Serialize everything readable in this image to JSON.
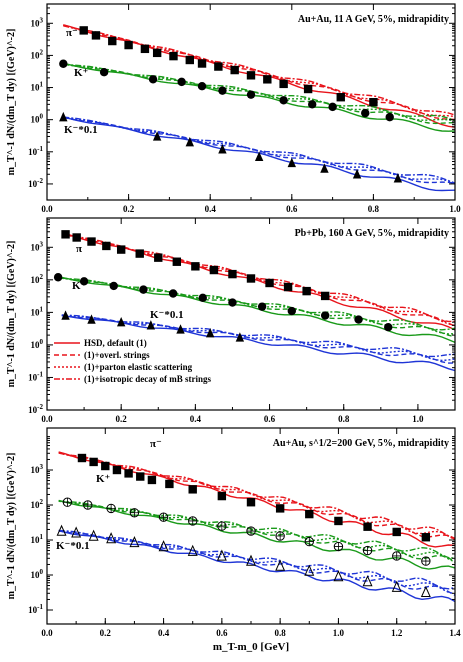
{
  "figure": {
    "xlabel": "m_T-m_0 [GeV]",
    "legend": [
      {
        "label": "HSD, default (1)",
        "style": "solid",
        "color": "#e8141b"
      },
      {
        "label": "(1)+overl. strings",
        "style": "dash",
        "color": "#e8141b"
      },
      {
        "label": "(1)+parton elastic scattering",
        "style": "dot",
        "color": "#e8141b"
      },
      {
        "label": "(1)+isotropic decay of mB strings",
        "style": "dashdot",
        "color": "#e8141b"
      }
    ],
    "colors": {
      "pion": "#e8141b",
      "kaon": "#1a9a1a",
      "kminus": "#1f35d6"
    }
  },
  "chart_data": [
    {
      "type": "line",
      "title": "Au+Au, 11 A GeV, 5%, midrapidity",
      "ylabel": "m_T^-1 dN/(dm_T dy) [(GeV)^-2]",
      "xlim": [
        0,
        1.0
      ],
      "ylim_log10": [
        -2.5,
        3.6
      ],
      "x_ticks": [
        "0.0",
        "0.2",
        "0.4",
        "0.6",
        "0.8",
        "1.0"
      ],
      "y_ticks": [
        "10^-2",
        "10^-1",
        "10^0",
        "10^1",
        "10^2",
        "10^3"
      ],
      "series": [
        {
          "name": "π⁻",
          "marker": "square-filled",
          "color": "#000",
          "points": [
            [
              0.09,
              600
            ],
            [
              0.12,
              420
            ],
            [
              0.16,
              280
            ],
            [
              0.2,
              210
            ],
            [
              0.24,
              160
            ],
            [
              0.27,
              120
            ],
            [
              0.31,
              95
            ],
            [
              0.35,
              72
            ],
            [
              0.38,
              56
            ],
            [
              0.42,
              45
            ],
            [
              0.46,
              35
            ],
            [
              0.5,
              24
            ],
            [
              0.54,
              18
            ],
            [
              0.58,
              13
            ],
            [
              0.64,
              9
            ],
            [
              0.72,
              5
            ],
            [
              0.8,
              3.5
            ]
          ]
        },
        {
          "name": "K⁺",
          "marker": "circle-filled",
          "color": "#000",
          "points": [
            [
              0.04,
              55
            ],
            [
              0.14,
              30
            ],
            [
              0.26,
              18
            ],
            [
              0.33,
              15
            ],
            [
              0.38,
              11
            ],
            [
              0.43,
              8
            ],
            [
              0.5,
              6
            ],
            [
              0.58,
              4
            ],
            [
              0.65,
              3
            ],
            [
              0.7,
              2.5
            ],
            [
              0.78,
              1.6
            ],
            [
              0.84,
              1.2
            ]
          ]
        },
        {
          "name": "K⁻*0.1",
          "marker": "triangle-filled",
          "color": "#000",
          "points": [
            [
              0.04,
              1.2
            ],
            [
              0.27,
              0.3
            ],
            [
              0.35,
              0.2
            ],
            [
              0.43,
              0.12
            ],
            [
              0.52,
              0.07
            ],
            [
              0.6,
              0.045
            ],
            [
              0.68,
              0.03
            ],
            [
              0.76,
              0.02
            ],
            [
              0.86,
              0.015
            ]
          ]
        }
      ]
    },
    {
      "type": "line",
      "title": "Pb+Pb, 160 A GeV, 5%, midrapidity",
      "ylabel": "m_T^-1 dN/(dm_T dy) [(GeV)^-2]",
      "xlim": [
        0,
        1.1
      ],
      "ylim_log10": [
        -2,
        3.9
      ],
      "x_ticks": [
        "0.0",
        "0.2",
        "0.4",
        "0.6",
        "0.8",
        "1.0"
      ],
      "y_ticks": [
        "10^-2",
        "10^-1",
        "10^0",
        "10^1",
        "10^2",
        "10^3"
      ],
      "series": [
        {
          "name": "π",
          "marker": "square-filled",
          "color": "#000",
          "points": [
            [
              0.05,
              2500
            ],
            [
              0.08,
              2000
            ],
            [
              0.12,
              1500
            ],
            [
              0.16,
              1100
            ],
            [
              0.2,
              850
            ],
            [
              0.25,
              640
            ],
            [
              0.3,
              480
            ],
            [
              0.35,
              360
            ],
            [
              0.4,
              260
            ],
            [
              0.45,
              200
            ],
            [
              0.5,
              150
            ],
            [
              0.55,
              110
            ],
            [
              0.6,
              80
            ],
            [
              0.65,
              60
            ],
            [
              0.7,
              45
            ],
            [
              0.75,
              32
            ]
          ]
        },
        {
          "name": "K⁺",
          "marker": "circle-filled",
          "color": "#000",
          "points": [
            [
              0.03,
              120
            ],
            [
              0.1,
              90
            ],
            [
              0.18,
              65
            ],
            [
              0.26,
              50
            ],
            [
              0.34,
              38
            ],
            [
              0.42,
              28
            ],
            [
              0.5,
              20
            ],
            [
              0.58,
              15
            ],
            [
              0.66,
              11
            ],
            [
              0.75,
              8
            ],
            [
              0.84,
              6
            ],
            [
              0.92,
              3.5
            ]
          ]
        },
        {
          "name": "K⁻*0.1",
          "marker": "triangle-filled",
          "color": "#000",
          "points": [
            [
              0.05,
              8
            ],
            [
              0.12,
              6
            ],
            [
              0.2,
              5
            ],
            [
              0.28,
              4
            ],
            [
              0.36,
              3
            ],
            [
              0.44,
              2.3
            ],
            [
              0.52,
              1.7
            ]
          ]
        }
      ]
    },
    {
      "type": "line",
      "title": "Au+Au, s^1/2=200 GeV, 5%, midrapidity",
      "ylabel": "m_T^-1 dN/(dm_T dy) [(GeV)^-2]",
      "xlim": [
        0,
        1.4
      ],
      "ylim_log10": [
        -1.4,
        4.2
      ],
      "x_ticks": [
        "0.0",
        "0.2",
        "0.4",
        "0.6",
        "0.8",
        "1.0",
        "1.2",
        "1.4"
      ],
      "y_ticks": [
        "10^-1",
        "10^0",
        "10^1",
        "10^2",
        "10^3"
      ],
      "series": [
        {
          "name": "π⁻",
          "marker": "square-filled",
          "color": "#000",
          "points": [
            [
              0.12,
              2200
            ],
            [
              0.16,
              1700
            ],
            [
              0.2,
              1300
            ],
            [
              0.24,
              1000
            ],
            [
              0.28,
              800
            ],
            [
              0.32,
              650
            ],
            [
              0.36,
              520
            ],
            [
              0.42,
              400
            ],
            [
              0.5,
              280
            ],
            [
              0.6,
              180
            ],
            [
              0.7,
              120
            ],
            [
              0.8,
              80
            ],
            [
              0.9,
              55
            ],
            [
              1.0,
              35
            ],
            [
              1.1,
              24
            ],
            [
              1.2,
              17
            ],
            [
              1.3,
              12
            ]
          ]
        },
        {
          "name": "K⁺",
          "marker": "circle-open-plus",
          "color": "#000",
          "points": [
            [
              0.07,
              120
            ],
            [
              0.14,
              100
            ],
            [
              0.22,
              80
            ],
            [
              0.3,
              60
            ],
            [
              0.4,
              45
            ],
            [
              0.5,
              35
            ],
            [
              0.6,
              25
            ],
            [
              0.7,
              18
            ],
            [
              0.8,
              13
            ],
            [
              0.9,
              9
            ],
            [
              1.0,
              6.5
            ],
            [
              1.1,
              5
            ],
            [
              1.2,
              3.5
            ],
            [
              1.3,
              2.5
            ]
          ]
        },
        {
          "name": "K⁻*0.1",
          "marker": "triangle-open",
          "color": "#000",
          "points": [
            [
              0.05,
              18
            ],
            [
              0.1,
              16
            ],
            [
              0.16,
              13
            ],
            [
              0.22,
              11
            ],
            [
              0.3,
              8.5
            ],
            [
              0.4,
              6.5
            ],
            [
              0.5,
              4.8
            ],
            [
              0.6,
              3.5
            ],
            [
              0.7,
              2.5
            ],
            [
              0.8,
              1.8
            ],
            [
              0.9,
              1.3
            ],
            [
              1.0,
              0.9
            ],
            [
              1.1,
              0.65
            ],
            [
              1.2,
              0.45
            ],
            [
              1.3,
              0.32
            ]
          ]
        }
      ]
    }
  ]
}
